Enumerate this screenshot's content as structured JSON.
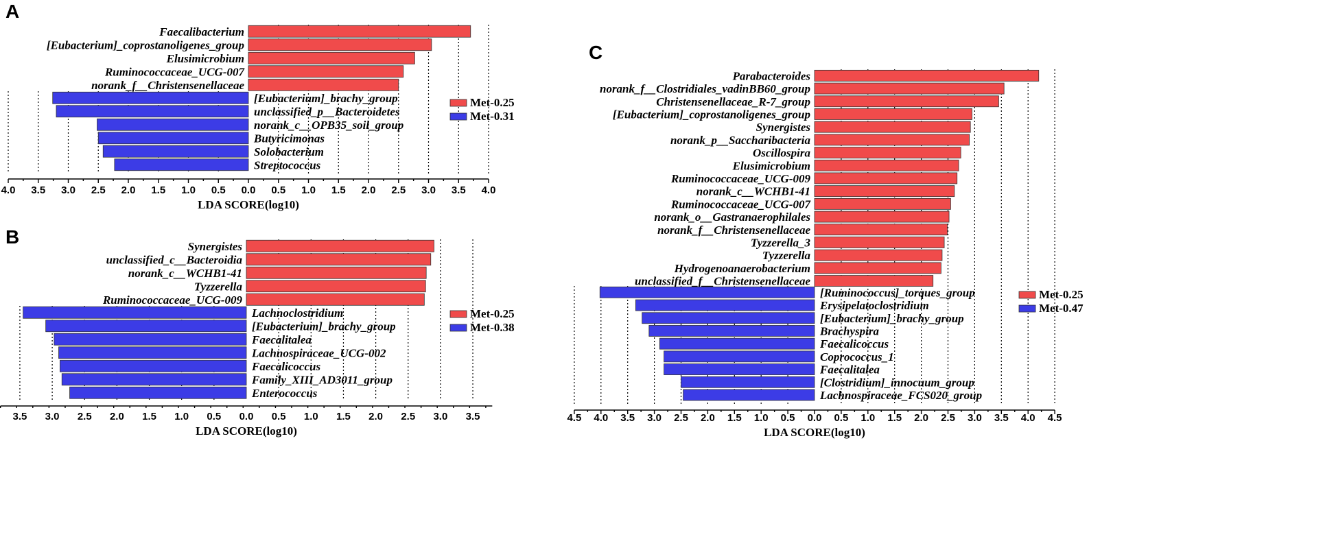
{
  "colors": {
    "red": "#f04b4b",
    "blue": "#3c3ce6"
  },
  "chart_data": [
    {
      "panel": "A",
      "type": "bar",
      "orientation": "diverging-horizontal",
      "xlabel": "LDA SCORE(log10)",
      "xlim_left": 4.0,
      "xlim_right": 4.0,
      "ticks_left": [
        "4.0",
        "3.5",
        "3.0",
        "2.5",
        "2.0",
        "1.5",
        "1.0",
        "0.5"
      ],
      "ticks_right": [
        "0.0",
        "0.5",
        "1.0",
        "1.5",
        "2.0",
        "2.5",
        "3.0",
        "3.5",
        "4.0"
      ],
      "legend": [
        {
          "label": "Met-0.25",
          "color": "#f04b4b"
        },
        {
          "label": "Met-0.31",
          "color": "#3c3ce6"
        }
      ],
      "red_bars": [
        {
          "label": "Faecalibacterium",
          "value": 3.7
        },
        {
          "label": "[Eubacterium]_coprostanoligenes_group",
          "value": 3.05
        },
        {
          "label": "Elusimicrobium",
          "value": 2.77
        },
        {
          "label": "Ruminococcaceae_UCG-007",
          "value": 2.58
        },
        {
          "label": "norank_f__Christensenellaceae",
          "value": 2.5
        }
      ],
      "blue_bars": [
        {
          "label": "[Eubacterium]_brachy_group",
          "value": 3.26
        },
        {
          "label": "unclassified_p__Bacteroidetes",
          "value": 3.2
        },
        {
          "label": "norank_c__OPB35_soil_group",
          "value": 2.52
        },
        {
          "label": "Butyricimonas",
          "value": 2.5
        },
        {
          "label": "Solobacterium",
          "value": 2.42
        },
        {
          "label": "Streptococcus",
          "value": 2.23
        }
      ]
    },
    {
      "panel": "B",
      "type": "bar",
      "orientation": "diverging-horizontal",
      "xlabel": "LDA SCORE(log10)",
      "xlim_left": 3.8,
      "xlim_right": 3.8,
      "ticks_left": [
        "3.5",
        "3.0",
        "2.5",
        "2.0",
        "1.5",
        "1.0",
        "0.5"
      ],
      "ticks_right": [
        "0.0",
        "0.5",
        "1.0",
        "1.5",
        "2.0",
        "2.5",
        "3.0",
        "3.5"
      ],
      "legend": [
        {
          "label": "Met-0.25",
          "color": "#f04b4b"
        },
        {
          "label": "Met-0.38",
          "color": "#3c3ce6"
        }
      ],
      "red_bars": [
        {
          "label": "Synergistes",
          "value": 2.9
        },
        {
          "label": "unclassified_c__Bacteroidia",
          "value": 2.85
        },
        {
          "label": "norank_c__WCHB1-41",
          "value": 2.78
        },
        {
          "label": "Tyzzerella",
          "value": 2.77
        },
        {
          "label": "Ruminococcaceae_UCG-009",
          "value": 2.75
        }
      ],
      "blue_bars": [
        {
          "label": "Lachnoclostridium",
          "value": 3.45
        },
        {
          "label": "[Eubacterium]_brachy_group",
          "value": 3.1
        },
        {
          "label": "Faecalitalea",
          "value": 2.97
        },
        {
          "label": "Lachnospiraceae_UCG-002",
          "value": 2.9
        },
        {
          "label": "Faecalicoccus",
          "value": 2.88
        },
        {
          "label": "Family_XIII_AD3011_group",
          "value": 2.85
        },
        {
          "label": "Enterococcus",
          "value": 2.73
        }
      ]
    },
    {
      "panel": "C",
      "type": "bar",
      "orientation": "diverging-horizontal",
      "xlabel": "LDA SCORE(log10)",
      "xlim_left": 4.5,
      "xlim_right": 4.5,
      "ticks_left": [
        "4.5",
        "4.0",
        "3.5",
        "3.0",
        "2.5",
        "2.0",
        "1.5",
        "1.0",
        "0.5"
      ],
      "ticks_right": [
        "0.0",
        "0.5",
        "1.0",
        "1.5",
        "2.0",
        "2.5",
        "3.0",
        "3.5",
        "4.0",
        "4.5"
      ],
      "legend": [
        {
          "label": "Met-0.25",
          "color": "#f04b4b"
        },
        {
          "label": "Met-0.47",
          "color": "#3c3ce6"
        }
      ],
      "red_bars": [
        {
          "label": "Parabacteroides",
          "value": 4.2
        },
        {
          "label": "norank_f__Clostridiales_vadinBB60_group",
          "value": 3.55
        },
        {
          "label": "Christensenellaceae_R-7_group",
          "value": 3.45
        },
        {
          "label": "[Eubacterium]_coprostanoligenes_group",
          "value": 2.95
        },
        {
          "label": "Synergistes",
          "value": 2.92
        },
        {
          "label": "norank_p__Saccharibacteria",
          "value": 2.9
        },
        {
          "label": "Oscillospira",
          "value": 2.74
        },
        {
          "label": "Elusimicrobium",
          "value": 2.7
        },
        {
          "label": "Ruminococcaceae_UCG-009",
          "value": 2.67
        },
        {
          "label": "norank_c__WCHB1-41",
          "value": 2.62
        },
        {
          "label": "Ruminococcaceae_UCG-007",
          "value": 2.55
        },
        {
          "label": "norank_o__Gastranaerophilales",
          "value": 2.52
        },
        {
          "label": "norank_f__Christensenellaceae",
          "value": 2.49
        },
        {
          "label": "Tyzzerella_3",
          "value": 2.43
        },
        {
          "label": "Tyzzerella",
          "value": 2.39
        },
        {
          "label": "Hydrogenoanaerobacterium",
          "value": 2.37
        },
        {
          "label": "unclassified_f__Christensenellaceae",
          "value": 2.22
        }
      ],
      "blue_bars": [
        {
          "label": "[Ruminococcus]_torques_group",
          "value": 4.02
        },
        {
          "label": "Erysipelatoclostridium",
          "value": 3.35
        },
        {
          "label": "[Eubacterium]_brachy_group",
          "value": 3.23
        },
        {
          "label": "Brachyspira",
          "value": 3.1
        },
        {
          "label": "Faecalicoccus",
          "value": 2.9
        },
        {
          "label": "Coprococcus_1",
          "value": 2.82
        },
        {
          "label": "Faecalitalea",
          "value": 2.82
        },
        {
          "label": "[Clostridium]_innocuum_group",
          "value": 2.5
        },
        {
          "label": "Lachnospiraceae_FCS020_group",
          "value": 2.46
        }
      ]
    }
  ]
}
